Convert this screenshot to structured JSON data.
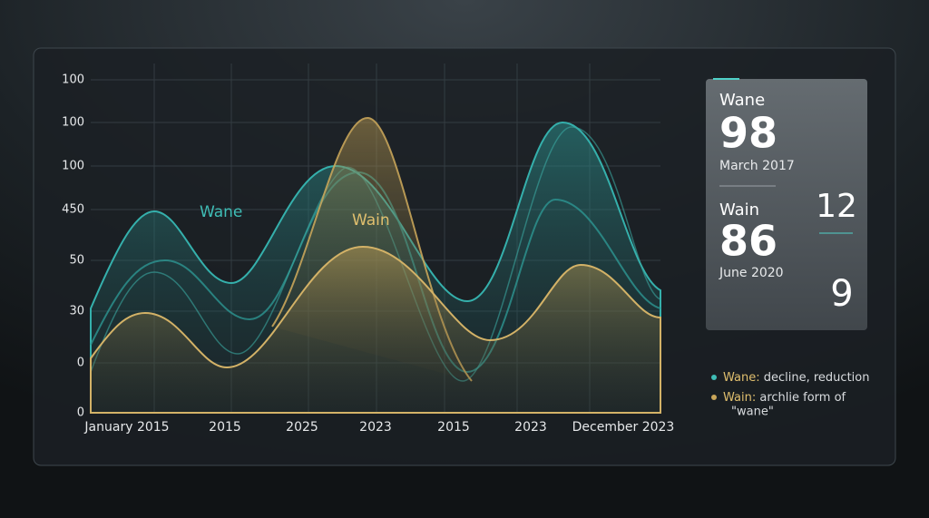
{
  "chart": {
    "y_axis_labels": [
      "100",
      "100",
      "100",
      "450",
      "50",
      "30",
      "0",
      "0"
    ],
    "x_axis_labels": [
      "January 2015",
      "2015",
      "2025",
      "2023",
      "2015",
      "2023",
      "December 2023"
    ],
    "series_labels": [
      "Wane",
      "Wain"
    ]
  },
  "card": {
    "first": {
      "title": "Wane",
      "value": "98",
      "date": "March 2017"
    },
    "second": {
      "title": "Wain",
      "value": "86",
      "date": "June 2020"
    },
    "side_values": [
      "12",
      "9"
    ]
  },
  "legend": [
    {
      "term": "Wane:",
      "definition": [
        "decline, reduction"
      ]
    },
    {
      "term": "Wain:",
      "definition": [
        "archlie form of",
        "\"wane\""
      ]
    }
  ]
}
